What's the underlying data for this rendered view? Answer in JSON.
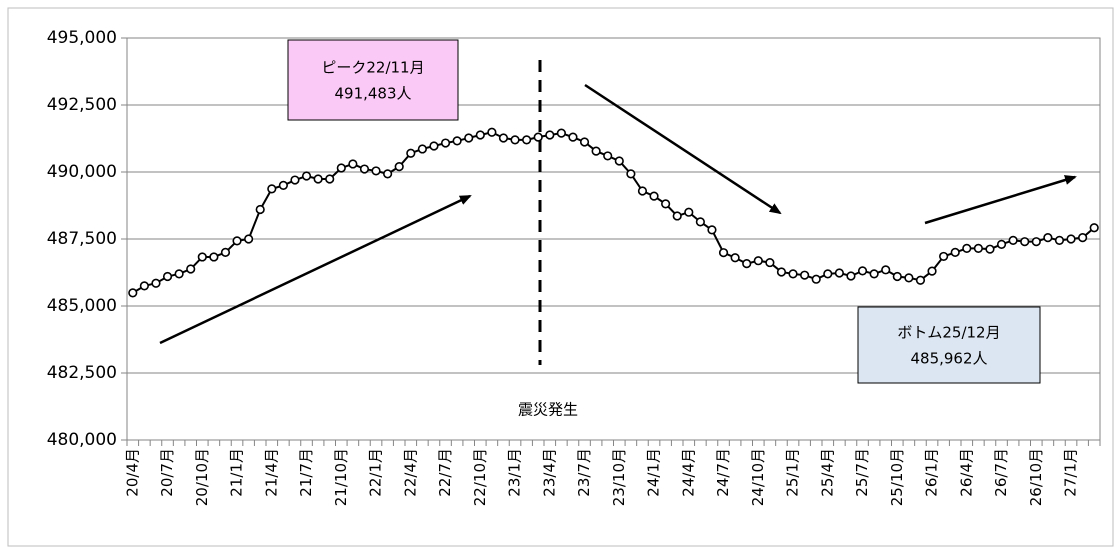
{
  "chart_data": {
    "type": "line",
    "categories": [
      "20/4月",
      null,
      null,
      "20/7月",
      null,
      null,
      "20/10月",
      null,
      null,
      "21/1月",
      null,
      null,
      "21/4月",
      null,
      null,
      "21/7月",
      null,
      null,
      "21/10月",
      null,
      null,
      "22/1月",
      null,
      null,
      "22/4月",
      null,
      null,
      "22/7月",
      null,
      null,
      "22/10月",
      null,
      null,
      "23/1月",
      null,
      null,
      "23/4月",
      null,
      null,
      "23/7月",
      null,
      null,
      "23/10月",
      null,
      null,
      "24/1月",
      null,
      null,
      "24/4月",
      null,
      null,
      "24/7月",
      null,
      null,
      "24/10月",
      null,
      null,
      "25/1月",
      null,
      null,
      "25/4月",
      null,
      null,
      "25/7月",
      null,
      null,
      "25/10月",
      null,
      null,
      "26/1月",
      null,
      null,
      "26/4月",
      null,
      null,
      "26/7月",
      null,
      null,
      "26/10月",
      null,
      null,
      "27/1月",
      null,
      null
    ],
    "series": [
      {
        "color": "#000000",
        "values": [
          485490,
          485750,
          485850,
          486100,
          486200,
          486380,
          486830,
          486830,
          487000,
          487430,
          487500,
          488600,
          489370,
          489500,
          489700,
          489850,
          489740,
          489740,
          490150,
          490300,
          490110,
          490040,
          489930,
          490200,
          490700,
          490860,
          490970,
          491080,
          491160,
          491270,
          491380,
          491483,
          491270,
          491200,
          491200,
          491300,
          491380,
          491450,
          491300,
          491120,
          490780,
          490600,
          490410,
          489930,
          489290,
          489100,
          488810,
          488360,
          488500,
          488140,
          487840,
          486990,
          486800,
          486580,
          486690,
          486620,
          486270,
          486200,
          486150,
          486000,
          486200,
          486230,
          486120,
          486310,
          486200,
          486350,
          486100,
          486050,
          485962,
          486300,
          486850,
          487000,
          487150,
          487150,
          487120,
          487300,
          487450,
          487400,
          487400,
          487550,
          487450,
          487500,
          487550,
          487920
        ]
      }
    ],
    "ylim": [
      480000,
      495000
    ],
    "yticks": [
      {
        "value": 480000,
        "label": "480,000"
      },
      {
        "value": 482500,
        "label": "482,500"
      },
      {
        "value": 485000,
        "label": "485,000"
      },
      {
        "value": 487500,
        "label": "487,500"
      },
      {
        "value": 490000,
        "label": "490,000"
      },
      {
        "value": 492500,
        "label": "492,500"
      },
      {
        "value": 495000,
        "label": "495,000"
      }
    ],
    "grid": true,
    "annotations": {
      "peak_title": "ピーク22/11月",
      "peak_value": "491,483人",
      "bottom_title": "ボトム25/12月",
      "bottom_value": "485,962人",
      "event": "震災発生"
    }
  }
}
